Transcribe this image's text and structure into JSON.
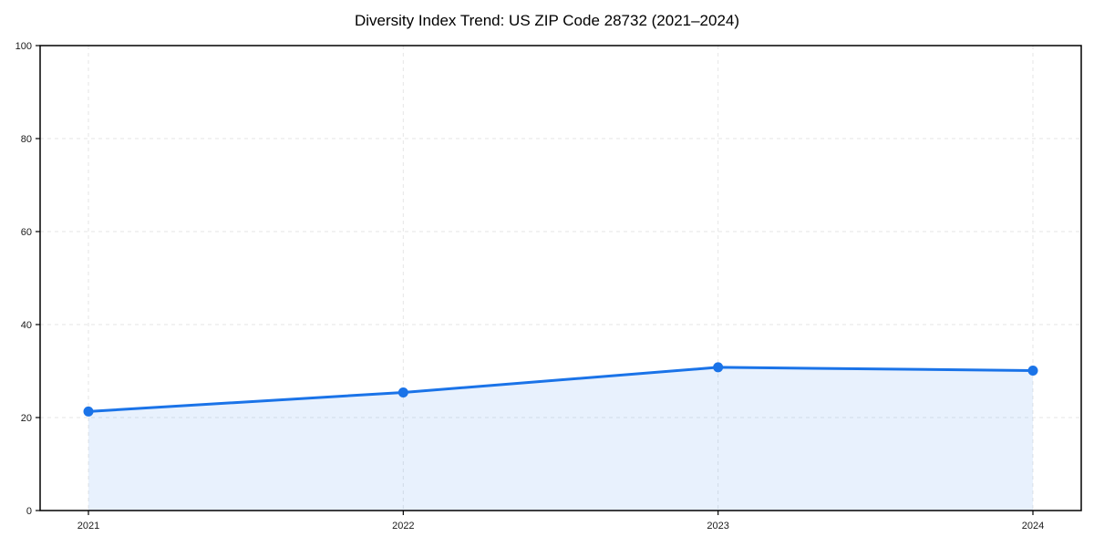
{
  "figure": {
    "background": "#ffffff"
  },
  "chart_data": {
    "type": "area",
    "title": "Diversity Index Trend: US ZIP Code 28732 (2021–2024)",
    "categories": [
      "2021",
      "2022",
      "2023",
      "2024"
    ],
    "values": [
      21.3,
      25.4,
      30.8,
      30.1
    ],
    "xlabel": "",
    "ylabel": "",
    "ylim": [
      0,
      100
    ],
    "yticks": [
      0,
      20,
      40,
      60,
      80,
      100
    ],
    "grid": true,
    "grid_style": "dashed",
    "legend": false,
    "marker": "circle",
    "colors": {
      "line": "#1a73e8",
      "marker": "#1a73e8",
      "fill": "#1a73e8",
      "fill_opacity": 0.1,
      "grid": "#e6e6e6",
      "spine": "#000000",
      "tick_text": "#1a1a1a"
    }
  }
}
